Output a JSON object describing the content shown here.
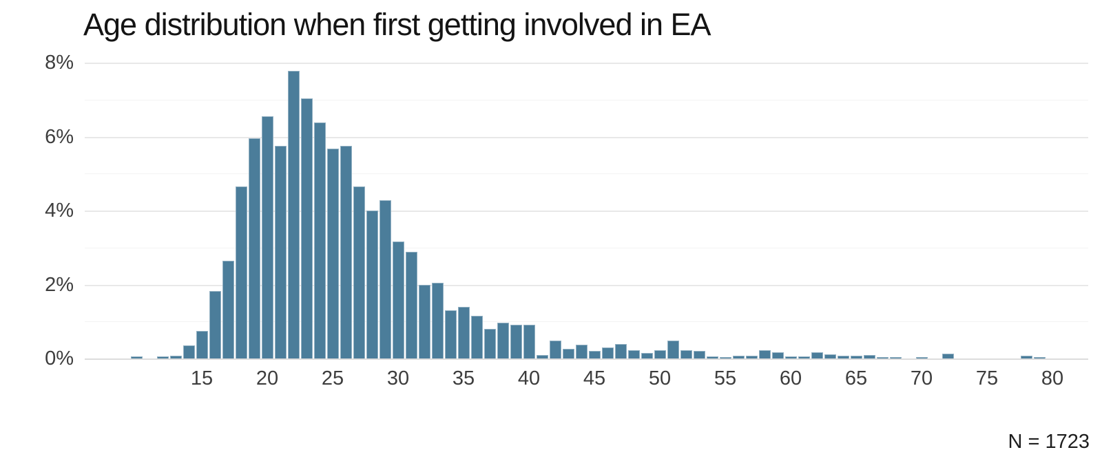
{
  "title": "Age distribution when first getting involved in EA",
  "footnote": "N = 1723",
  "colors": {
    "background": "#ffffff",
    "bar_fill": "#4b7d9a",
    "bar_border": "#93b1c3",
    "grid_major": "#e8e8e8",
    "grid_minor": "#f3f3f3",
    "axis_line": "#dcdcdc",
    "tick_text": "#3d3d3d",
    "title_text": "#141414",
    "note_text": "#1e1e1e"
  },
  "chart_data": {
    "type": "bar",
    "title": "Age distribution when first getting involved in EA",
    "xlabel": "",
    "ylabel": "",
    "legend": "none",
    "grid": "horizontal major every 2%, minor every 1%",
    "annotation": "N = 1723",
    "ylim": [
      0,
      8
    ],
    "x": [
      10,
      11,
      12,
      13,
      14,
      15,
      16,
      17,
      18,
      19,
      20,
      21,
      22,
      23,
      24,
      25,
      26,
      27,
      28,
      29,
      30,
      31,
      32,
      33,
      34,
      35,
      36,
      37,
      38,
      39,
      40,
      41,
      42,
      43,
      44,
      45,
      46,
      47,
      48,
      49,
      50,
      51,
      52,
      53,
      54,
      55,
      56,
      57,
      58,
      59,
      60,
      61,
      62,
      63,
      64,
      65,
      66,
      67,
      68,
      69,
      70,
      71,
      72,
      73,
      74,
      75,
      76,
      77,
      78,
      79,
      80
    ],
    "values": [
      0.05,
      0,
      0.06,
      0.08,
      0.36,
      0.74,
      1.83,
      2.65,
      4.65,
      5.95,
      6.55,
      5.75,
      7.78,
      7.03,
      6.38,
      5.68,
      5.74,
      4.65,
      4.0,
      4.28,
      3.17,
      2.88,
      2.0,
      2.05,
      1.3,
      1.4,
      1.15,
      0.8,
      0.97,
      0.92,
      0.92,
      0.1,
      0.48,
      0.26,
      0.37,
      0.2,
      0.3,
      0.39,
      0.22,
      0.15,
      0.22,
      0.48,
      0.22,
      0.2,
      0.06,
      0.03,
      0.08,
      0.08,
      0.23,
      0.16,
      0.06,
      0.06,
      0.17,
      0.12,
      0.08,
      0.08,
      0.09,
      0.03,
      0.03,
      0,
      0.03,
      0,
      0.13,
      0,
      0,
      0,
      0,
      0,
      0.08,
      0.04,
      0
    ],
    "x_ticks": [
      {
        "v": 15,
        "label": "15"
      },
      {
        "v": 20,
        "label": "20"
      },
      {
        "v": 25,
        "label": "25"
      },
      {
        "v": 30,
        "label": "30"
      },
      {
        "v": 35,
        "label": "35"
      },
      {
        "v": 40,
        "label": "40"
      },
      {
        "v": 45,
        "label": "45"
      },
      {
        "v": 50,
        "label": "50"
      },
      {
        "v": 55,
        "label": "55"
      },
      {
        "v": 60,
        "label": "60"
      },
      {
        "v": 65,
        "label": "65"
      },
      {
        "v": 70,
        "label": "70"
      },
      {
        "v": 75,
        "label": "75"
      },
      {
        "v": 80,
        "label": "80"
      }
    ],
    "y_ticks": [
      {
        "v": 0,
        "label": "0%"
      },
      {
        "v": 2,
        "label": "2%"
      },
      {
        "v": 4,
        "label": "4%"
      },
      {
        "v": 6,
        "label": "6%"
      },
      {
        "v": 8,
        "label": "8%"
      }
    ]
  }
}
